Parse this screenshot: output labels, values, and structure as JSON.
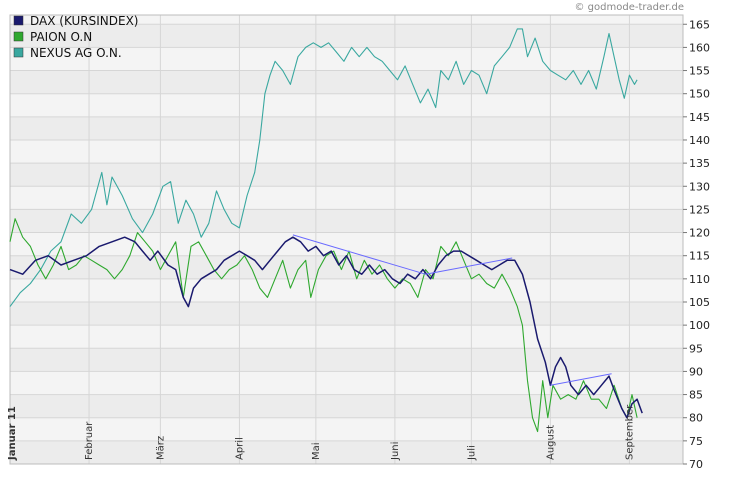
{
  "watermark": "© godmode-trader.de",
  "chart_data": {
    "type": "line",
    "title": "",
    "xlabel": "",
    "ylabel": "",
    "ylim": [
      70,
      167
    ],
    "y_ticks": [
      70,
      75,
      80,
      85,
      90,
      95,
      100,
      105,
      110,
      115,
      120,
      125,
      130,
      135,
      140,
      145,
      150,
      155,
      160,
      165
    ],
    "x_ticks": [
      "Januar 11",
      "Februar",
      "März",
      "April",
      "Mai",
      "Juni",
      "Juli",
      "August",
      "September"
    ],
    "x_tick_days": [
      0,
      31,
      59,
      90,
      120,
      151,
      181,
      212,
      243
    ],
    "x_range": [
      0,
      255
    ],
    "grid": true,
    "legend_position": "top-left",
    "series": [
      {
        "name": "DAX (KURSINDEX)",
        "color": "#1a1a6e",
        "points": [
          [
            0,
            112
          ],
          [
            5,
            111
          ],
          [
            10,
            114
          ],
          [
            15,
            115
          ],
          [
            20,
            113
          ],
          [
            25,
            114
          ],
          [
            30,
            115
          ],
          [
            35,
            117
          ],
          [
            40,
            118
          ],
          [
            45,
            119
          ],
          [
            49,
            118
          ],
          [
            52,
            116
          ],
          [
            55,
            114
          ],
          [
            58,
            116
          ],
          [
            62,
            113
          ],
          [
            65,
            112
          ],
          [
            68,
            106
          ],
          [
            70,
            104
          ],
          [
            72,
            108
          ],
          [
            75,
            110
          ],
          [
            78,
            111
          ],
          [
            81,
            112
          ],
          [
            84,
            114
          ],
          [
            87,
            115
          ],
          [
            90,
            116
          ],
          [
            93,
            115
          ],
          [
            96,
            114
          ],
          [
            99,
            112
          ],
          [
            102,
            114
          ],
          [
            105,
            116
          ],
          [
            108,
            118
          ],
          [
            111,
            119
          ],
          [
            114,
            118
          ],
          [
            117,
            116
          ],
          [
            120,
            117
          ],
          [
            123,
            115
          ],
          [
            126,
            116
          ],
          [
            129,
            113
          ],
          [
            132,
            115
          ],
          [
            135,
            112
          ],
          [
            138,
            111
          ],
          [
            141,
            113
          ],
          [
            144,
            111
          ],
          [
            147,
            112
          ],
          [
            150,
            110
          ],
          [
            153,
            109
          ],
          [
            156,
            111
          ],
          [
            159,
            110
          ],
          [
            162,
            112
          ],
          [
            165,
            110
          ],
          [
            168,
            113
          ],
          [
            171,
            115
          ],
          [
            174,
            116
          ],
          [
            177,
            116
          ],
          [
            180,
            115
          ],
          [
            183,
            114
          ],
          [
            186,
            113
          ],
          [
            189,
            112
          ],
          [
            192,
            113
          ],
          [
            195,
            114
          ],
          [
            198,
            114
          ],
          [
            201,
            111
          ],
          [
            204,
            105
          ],
          [
            207,
            97
          ],
          [
            210,
            92
          ],
          [
            212,
            87
          ],
          [
            214,
            91
          ],
          [
            216,
            93
          ],
          [
            218,
            91
          ],
          [
            220,
            87
          ],
          [
            223,
            85
          ],
          [
            226,
            87
          ],
          [
            229,
            85
          ],
          [
            232,
            87
          ],
          [
            235,
            89
          ],
          [
            237,
            86
          ],
          [
            240,
            82
          ],
          [
            242,
            80
          ],
          [
            244,
            83
          ],
          [
            246,
            84
          ],
          [
            248,
            81
          ]
        ]
      },
      {
        "name": "PAION O.N",
        "color": "#2fa82f",
        "points": [
          [
            0,
            118
          ],
          [
            2,
            123
          ],
          [
            5,
            119
          ],
          [
            8,
            117
          ],
          [
            11,
            113
          ],
          [
            14,
            110
          ],
          [
            17,
            113
          ],
          [
            20,
            117
          ],
          [
            23,
            112
          ],
          [
            26,
            113
          ],
          [
            29,
            115
          ],
          [
            32,
            114
          ],
          [
            35,
            113
          ],
          [
            38,
            112
          ],
          [
            41,
            110
          ],
          [
            44,
            112
          ],
          [
            47,
            115
          ],
          [
            50,
            120
          ],
          [
            53,
            118
          ],
          [
            56,
            116
          ],
          [
            59,
            112
          ],
          [
            62,
            115
          ],
          [
            65,
            118
          ],
          [
            68,
            106
          ],
          [
            71,
            117
          ],
          [
            74,
            118
          ],
          [
            77,
            115
          ],
          [
            80,
            112
          ],
          [
            83,
            110
          ],
          [
            86,
            112
          ],
          [
            89,
            113
          ],
          [
            92,
            115
          ],
          [
            95,
            112
          ],
          [
            98,
            108
          ],
          [
            101,
            106
          ],
          [
            104,
            110
          ],
          [
            107,
            114
          ],
          [
            110,
            108
          ],
          [
            113,
            112
          ],
          [
            116,
            114
          ],
          [
            118,
            106
          ],
          [
            121,
            112
          ],
          [
            124,
            115
          ],
          [
            127,
            116
          ],
          [
            130,
            112
          ],
          [
            133,
            116
          ],
          [
            136,
            110
          ],
          [
            139,
            114
          ],
          [
            142,
            111
          ],
          [
            145,
            113
          ],
          [
            148,
            110
          ],
          [
            151,
            108
          ],
          [
            154,
            110
          ],
          [
            157,
            109
          ],
          [
            160,
            106
          ],
          [
            163,
            112
          ],
          [
            166,
            110
          ],
          [
            169,
            117
          ],
          [
            172,
            115
          ],
          [
            175,
            118
          ],
          [
            178,
            114
          ],
          [
            181,
            110
          ],
          [
            184,
            111
          ],
          [
            187,
            109
          ],
          [
            190,
            108
          ],
          [
            193,
            111
          ],
          [
            196,
            108
          ],
          [
            199,
            104
          ],
          [
            201,
            100
          ],
          [
            203,
            88
          ],
          [
            205,
            80
          ],
          [
            207,
            77
          ],
          [
            209,
            88
          ],
          [
            211,
            80
          ],
          [
            213,
            87
          ],
          [
            216,
            84
          ],
          [
            219,
            85
          ],
          [
            222,
            84
          ],
          [
            225,
            88
          ],
          [
            228,
            84
          ],
          [
            231,
            84
          ],
          [
            234,
            82
          ],
          [
            237,
            87
          ],
          [
            240,
            82
          ],
          [
            242,
            80
          ],
          [
            244,
            85
          ],
          [
            246,
            80
          ]
        ]
      },
      {
        "name": "NEXUS AG O.N.",
        "color": "#3aa8a0",
        "points": [
          [
            0,
            104
          ],
          [
            4,
            107
          ],
          [
            8,
            109
          ],
          [
            12,
            112
          ],
          [
            16,
            116
          ],
          [
            20,
            118
          ],
          [
            24,
            124
          ],
          [
            28,
            122
          ],
          [
            32,
            125
          ],
          [
            36,
            133
          ],
          [
            38,
            126
          ],
          [
            40,
            132
          ],
          [
            44,
            128
          ],
          [
            48,
            123
          ],
          [
            52,
            120
          ],
          [
            56,
            124
          ],
          [
            60,
            130
          ],
          [
            63,
            131
          ],
          [
            66,
            122
          ],
          [
            69,
            127
          ],
          [
            72,
            124
          ],
          [
            75,
            119
          ],
          [
            78,
            122
          ],
          [
            81,
            129
          ],
          [
            84,
            125
          ],
          [
            87,
            122
          ],
          [
            90,
            121
          ],
          [
            93,
            128
          ],
          [
            96,
            133
          ],
          [
            98,
            140
          ],
          [
            100,
            150
          ],
          [
            102,
            154
          ],
          [
            104,
            157
          ],
          [
            107,
            155
          ],
          [
            110,
            152
          ],
          [
            113,
            158
          ],
          [
            116,
            160
          ],
          [
            119,
            161
          ],
          [
            122,
            160
          ],
          [
            125,
            161
          ],
          [
            128,
            159
          ],
          [
            131,
            157
          ],
          [
            134,
            160
          ],
          [
            137,
            158
          ],
          [
            140,
            160
          ],
          [
            143,
            158
          ],
          [
            146,
            157
          ],
          [
            149,
            155
          ],
          [
            152,
            153
          ],
          [
            155,
            156
          ],
          [
            158,
            152
          ],
          [
            161,
            148
          ],
          [
            164,
            151
          ],
          [
            167,
            147
          ],
          [
            169,
            155
          ],
          [
            172,
            153
          ],
          [
            175,
            157
          ],
          [
            178,
            152
          ],
          [
            181,
            155
          ],
          [
            184,
            154
          ],
          [
            187,
            150
          ],
          [
            190,
            156
          ],
          [
            193,
            158
          ],
          [
            196,
            160
          ],
          [
            199,
            164
          ],
          [
            201,
            164
          ],
          [
            203,
            158
          ],
          [
            206,
            162
          ],
          [
            209,
            157
          ],
          [
            212,
            155
          ],
          [
            215,
            154
          ],
          [
            218,
            153
          ],
          [
            221,
            155
          ],
          [
            224,
            152
          ],
          [
            227,
            155
          ],
          [
            230,
            151
          ],
          [
            233,
            158
          ],
          [
            235,
            163
          ],
          [
            237,
            158
          ],
          [
            239,
            153
          ],
          [
            241,
            149
          ],
          [
            243,
            154
          ],
          [
            245,
            152
          ],
          [
            246,
            153
          ]
        ]
      }
    ],
    "trendlines": [
      {
        "color": "#6a6aff",
        "points": [
          [
            111,
            119.5
          ],
          [
            163,
            111
          ]
        ]
      },
      {
        "color": "#6a6aff",
        "points": [
          [
            163,
            111
          ],
          [
            197,
            114.5
          ]
        ]
      },
      {
        "color": "#6a6aff",
        "points": [
          [
            212,
            87
          ],
          [
            236,
            89.5
          ]
        ]
      }
    ]
  }
}
